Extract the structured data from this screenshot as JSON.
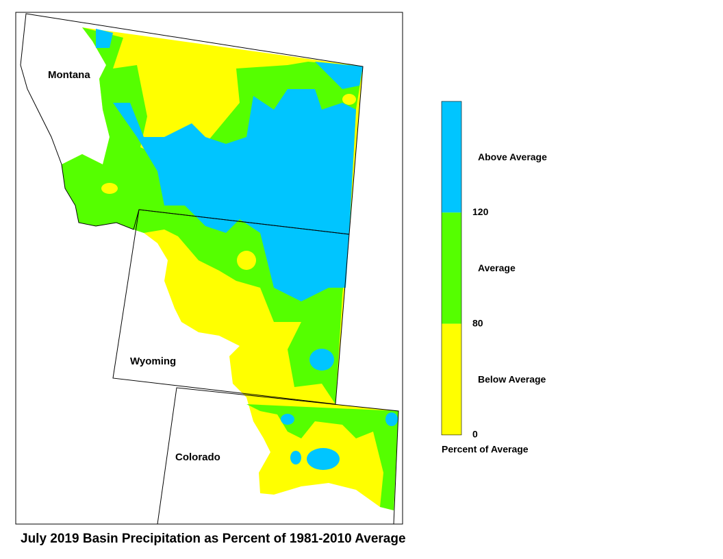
{
  "title": "July 2019 Basin Precipitation as Percent of 1981-2010 Average",
  "states": [
    {
      "name": "Montana"
    },
    {
      "name": "Wyoming"
    },
    {
      "name": "Colorado"
    }
  ],
  "legend": {
    "classes": [
      {
        "label": "Above Average",
        "color": "#00c5ff"
      },
      {
        "label": "Average",
        "color": "#55ff00"
      },
      {
        "label": "Below Average",
        "color": "#ffff00"
      }
    ],
    "ticks": [
      120,
      80,
      0
    ],
    "caption": "Percent of Average"
  }
}
